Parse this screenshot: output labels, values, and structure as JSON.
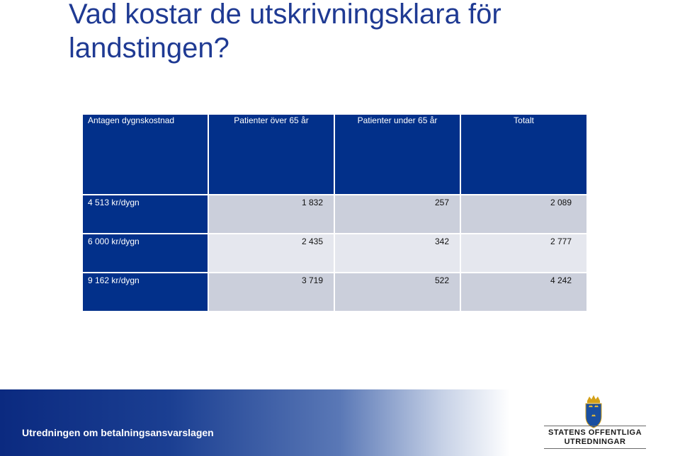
{
  "slide": {
    "title": "Vad kostar de utskrivningsklara för landstingen?"
  },
  "table": {
    "headers": [
      "Antagen dygnskostnad",
      "Patienter över 65 år",
      "Patienter under 65 år",
      "Totalt"
    ],
    "rows": [
      {
        "label": "4 513 kr/dygn",
        "over65": "1 832",
        "under65": "257",
        "total": "2 089"
      },
      {
        "label": "6 000 kr/dygn",
        "over65": "2 435",
        "under65": "342",
        "total": "2 777"
      },
      {
        "label": "9 162 kr/dygn",
        "over65": "3 719",
        "under65": "522",
        "total": "4 242"
      }
    ]
  },
  "footer": {
    "text": "Utredningen om betalningsansvarslagen",
    "logo_line1": "STATENS OFFENTLIGA",
    "logo_line2": "UTREDNINGAR",
    "logo_icon": "royal-crest-icon"
  },
  "colors": {
    "title": "#1f3a93",
    "header_bg": "#02308a",
    "row_light": "#e5e7ee",
    "row_dark": "#cbcfdb"
  }
}
